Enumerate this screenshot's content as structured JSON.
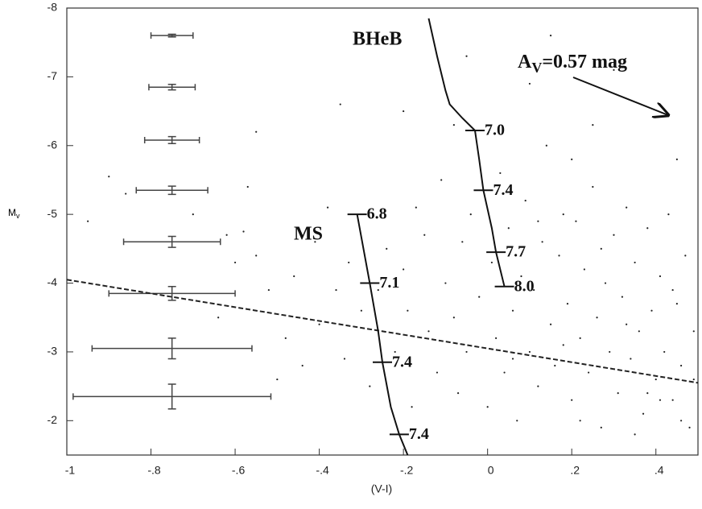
{
  "chart_data": {
    "type": "scatter",
    "xlabel": "(V-I)",
    "ylabel": {
      "text": "M",
      "subscript": "v"
    },
    "xlim": [
      -1,
      0.5
    ],
    "ylim": [
      -1.5,
      -8
    ],
    "xticks": [
      -1,
      {
        "value": -0.8,
        "label": "-.8"
      },
      {
        "value": -0.6,
        "label": "-.6"
      },
      {
        "value": -0.4,
        "label": "-.4"
      },
      {
        "value": -0.2,
        "label": "-.2"
      },
      0,
      {
        "value": 0.2,
        "label": ".2"
      },
      {
        "value": 0.4,
        "label": ".4"
      }
    ],
    "yticks": [
      -2,
      -3,
      -4,
      -5,
      -6,
      -7,
      -8
    ],
    "points": {
      "x": [
        -0.9,
        -0.86,
        -0.95,
        -0.7,
        -0.62,
        -0.58,
        -0.57,
        -0.55,
        -0.6,
        -0.64,
        -0.52,
        -0.48,
        -0.46,
        -0.5,
        -0.44,
        -0.4,
        -0.41,
        -0.38,
        -0.36,
        -0.34,
        -0.33,
        -0.3,
        -0.35,
        -0.28,
        -0.26,
        -0.24,
        -0.22,
        -0.2,
        -0.18,
        -0.19,
        -0.17,
        -0.15,
        -0.14,
        -0.12,
        -0.1,
        -0.11,
        -0.08,
        -0.07,
        -0.06,
        -0.05,
        -0.04,
        -0.02,
        0.0,
        0.01,
        0.02,
        0.03,
        0.04,
        0.05,
        0.06,
        0.07,
        0.08,
        0.09,
        0.1,
        0.11,
        0.12,
        0.13,
        0.14,
        0.15,
        0.16,
        0.17,
        0.18,
        0.19,
        0.2,
        0.21,
        0.22,
        0.23,
        0.24,
        0.25,
        0.26,
        0.27,
        0.28,
        0.29,
        0.3,
        0.31,
        0.32,
        0.33,
        0.34,
        0.35,
        0.36,
        0.37,
        0.38,
        0.39,
        0.4,
        0.41,
        0.42,
        0.43,
        0.44,
        0.45,
        0.46,
        0.47,
        0.48,
        0.49,
        0.46,
        0.44,
        0.38,
        0.33,
        0.27,
        0.18,
        0.12,
        0.06,
        0.15,
        0.1,
        0.25,
        -0.05,
        -0.3,
        -0.55,
        -0.2,
        0.3,
        0.45,
        0.2,
        -0.08,
        0.22,
        0.35,
        0.41,
        0.49
      ],
      "y": [
        -5.55,
        -5.3,
        -4.9,
        -5.0,
        -4.7,
        -4.75,
        -5.4,
        -4.4,
        -4.3,
        -3.5,
        -3.9,
        -3.2,
        -4.1,
        -2.6,
        -2.8,
        -3.4,
        -4.6,
        -5.1,
        -3.9,
        -2.9,
        -4.3,
        -3.6,
        -6.6,
        -2.5,
        -3.9,
        -4.5,
        -3.0,
        -4.2,
        -2.2,
        -3.6,
        -5.1,
        -4.7,
        -3.3,
        -2.7,
        -4.0,
        -5.5,
        -3.5,
        -2.4,
        -4.6,
        -3.0,
        -5.0,
        -3.8,
        -2.2,
        -4.3,
        -3.2,
        -5.6,
        -2.7,
        -4.8,
        -3.6,
        -2.0,
        -4.1,
        -5.2,
        -3.0,
        -3.9,
        -2.5,
        -4.6,
        -6.0,
        -3.4,
        -2.8,
        -4.4,
        -5.0,
        -3.7,
        -2.3,
        -4.9,
        -3.2,
        -4.2,
        -2.7,
        -5.4,
        -3.5,
        -1.9,
        -4.0,
        -3.0,
        -4.7,
        -2.4,
        -3.8,
        -5.1,
        -2.9,
        -4.3,
        -3.3,
        -2.1,
        -4.8,
        -3.6,
        -2.6,
        -4.1,
        -3.0,
        -5.0,
        -2.3,
        -3.7,
        -2.8,
        -4.4,
        -1.9,
        -3.3,
        -2.0,
        -3.9,
        -2.4,
        -3.4,
        -4.5,
        -3.1,
        -4.9,
        -2.9,
        -7.6,
        -6.9,
        -6.3,
        -7.3,
        -7.6,
        -6.2,
        -6.5,
        -7.1,
        -5.8,
        -5.8,
        -6.3,
        -2.0,
        -1.8,
        -2.3,
        -2.6
      ]
    },
    "error_bars": {
      "x": [
        -0.75,
        -0.75,
        -0.75,
        -0.75,
        -0.75,
        -0.75,
        -0.75,
        -0.75
      ],
      "y": [
        -7.6,
        -6.85,
        -6.08,
        -5.35,
        -4.6,
        -3.85,
        -3.05,
        -2.35
      ],
      "xerr": [
        0.05,
        0.055,
        0.065,
        0.085,
        0.115,
        0.15,
        0.19,
        0.235
      ],
      "yerr": [
        0.02,
        0.04,
        0.05,
        0.06,
        0.08,
        0.1,
        0.15,
        0.18
      ]
    },
    "tracks": [
      {
        "label": "MS",
        "x": [
          -0.31,
          -0.28,
          -0.26,
          -0.25,
          -0.23,
          -0.21,
          -0.19
        ],
        "y": [
          -5.0,
          -4.0,
          -3.3,
          -2.85,
          -2.2,
          -1.8,
          -1.5
        ],
        "ages": [
          {
            "x": -0.31,
            "y": -5.0,
            "label": "6.8"
          },
          {
            "x": -0.28,
            "y": -4.0,
            "label": "7.1"
          },
          {
            "x": -0.25,
            "y": -2.85,
            "label": "7.4"
          },
          {
            "x": -0.21,
            "y": -1.8,
            "label": "7.4"
          }
        ]
      },
      {
        "label": "BHeB",
        "x": [
          -0.14,
          -0.12,
          -0.1,
          -0.09,
          -0.06,
          -0.03,
          -0.02,
          -0.01,
          0.01,
          0.02,
          0.04
        ],
        "y": [
          -7.85,
          -7.3,
          -6.8,
          -6.6,
          -6.4,
          -6.22,
          -5.8,
          -5.35,
          -4.8,
          -4.45,
          -3.95
        ],
        "ages": [
          {
            "x": -0.03,
            "y": -6.22,
            "label": "7.0"
          },
          {
            "x": -0.01,
            "y": -5.35,
            "label": "7.4"
          },
          {
            "x": 0.02,
            "y": -4.45,
            "label": "7.7"
          },
          {
            "x": 0.04,
            "y": -3.95,
            "label": "8.0"
          }
        ]
      }
    ],
    "dashed_line": {
      "x": [
        -1,
        0.5
      ],
      "y": [
        -4.05,
        -2.55
      ]
    },
    "annotation": {
      "text": "A",
      "subscript": "V",
      "rest": "=0.57 mag"
    }
  }
}
